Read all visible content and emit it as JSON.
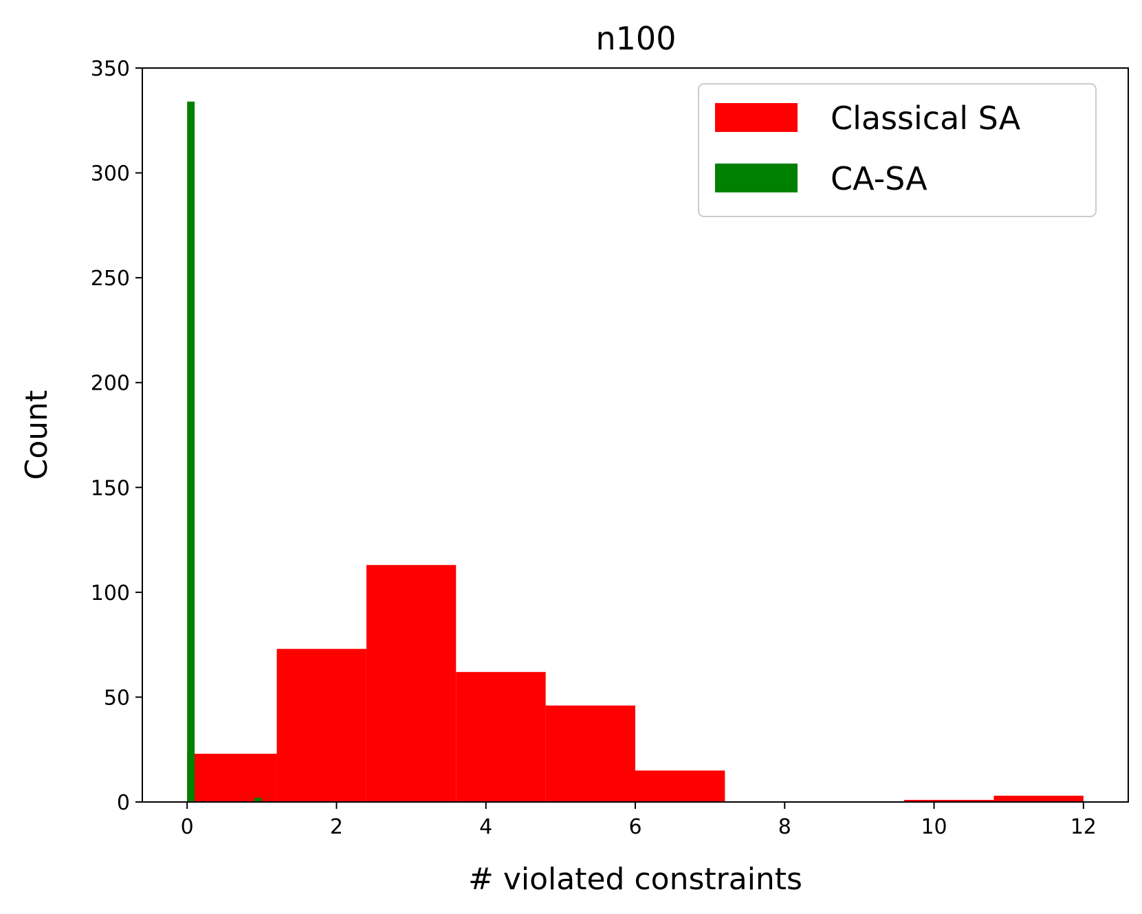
{
  "chart_data": {
    "type": "bar",
    "title": "n100",
    "xlabel": "# violated constraints",
    "ylabel": "Count",
    "xlim": [
      -0.6,
      12.6
    ],
    "ylim": [
      0,
      350
    ],
    "xticks": [
      0,
      2,
      4,
      6,
      8,
      10,
      12
    ],
    "yticks": [
      0,
      50,
      100,
      150,
      200,
      250,
      300,
      350
    ],
    "grid": false,
    "legend_position": "top-right",
    "series": [
      {
        "name": "Classical SA",
        "color": "#ff0000",
        "bins": [
          {
            "x0": 0.0,
            "x1": 1.2,
            "value": 23
          },
          {
            "x0": 1.2,
            "x1": 2.4,
            "value": 73
          },
          {
            "x0": 2.4,
            "x1": 3.6,
            "value": 113
          },
          {
            "x0": 3.6,
            "x1": 4.8,
            "value": 62
          },
          {
            "x0": 4.8,
            "x1": 6.0,
            "value": 46
          },
          {
            "x0": 6.0,
            "x1": 7.2,
            "value": 15
          },
          {
            "x0": 7.2,
            "x1": 8.4,
            "value": 0
          },
          {
            "x0": 8.4,
            "x1": 9.6,
            "value": 0
          },
          {
            "x0": 9.6,
            "x1": 10.8,
            "value": 1
          },
          {
            "x0": 10.8,
            "x1": 12.0,
            "value": 3
          }
        ]
      },
      {
        "name": "CA-SA",
        "color": "#008000",
        "bins": [
          {
            "x0": 0.0,
            "x1": 0.1,
            "value": 334
          },
          {
            "x0": 0.9,
            "x1": 1.0,
            "value": 2
          }
        ]
      }
    ]
  }
}
